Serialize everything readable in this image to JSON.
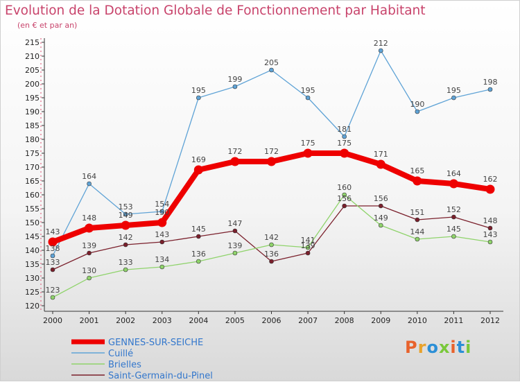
{
  "chart_data": {
    "type": "line",
    "title": "Evolution de la Dotation Globale de Fonctionnement par Habitant",
    "subtitle": "(en € et par an)",
    "x": [
      2000,
      2001,
      2002,
      2003,
      2004,
      2005,
      2006,
      2007,
      2008,
      2009,
      2010,
      2011,
      2012
    ],
    "ylim": [
      120,
      215
    ],
    "ytick_step": 5,
    "grid": false,
    "legend_position": "bottom-left",
    "series": [
      {
        "name": "Saint-Germain-du-Pinel",
        "color": "#7a1f2b",
        "values": [
          133,
          139,
          142,
          143,
          145,
          147,
          136,
          139,
          156,
          156,
          151,
          152,
          148
        ]
      },
      {
        "name": "Brielles",
        "color": "#8fd36b",
        "values": [
          123,
          130,
          133,
          134,
          136,
          139,
          142,
          141,
          160,
          149,
          144,
          145,
          143
        ]
      },
      {
        "name": "Cuillé",
        "color": "#5fa3d6",
        "values": [
          138,
          164,
          153,
          154,
          195,
          199,
          205,
          195,
          181,
          212,
          190,
          195,
          198
        ]
      },
      {
        "name": "GENNES-SUR-SEICHE",
        "color": "#ee0000",
        "values": [
          143,
          148,
          149,
          150,
          169,
          172,
          172,
          175,
          175,
          171,
          165,
          164,
          162
        ]
      }
    ],
    "legend_order": [
      "GENNES-SUR-SEICHE",
      "Cuillé",
      "Brielles",
      "Saint-Germain-du-Pinel"
    ]
  },
  "logo": {
    "letters": [
      "P",
      "r",
      "o",
      "x",
      "i",
      "t",
      "i"
    ],
    "colors": [
      "#e8622c",
      "#e8a22c",
      "#2b8fd6",
      "#79c83a",
      "#e8622c",
      "#2b8fd6",
      "#79c83a"
    ]
  }
}
